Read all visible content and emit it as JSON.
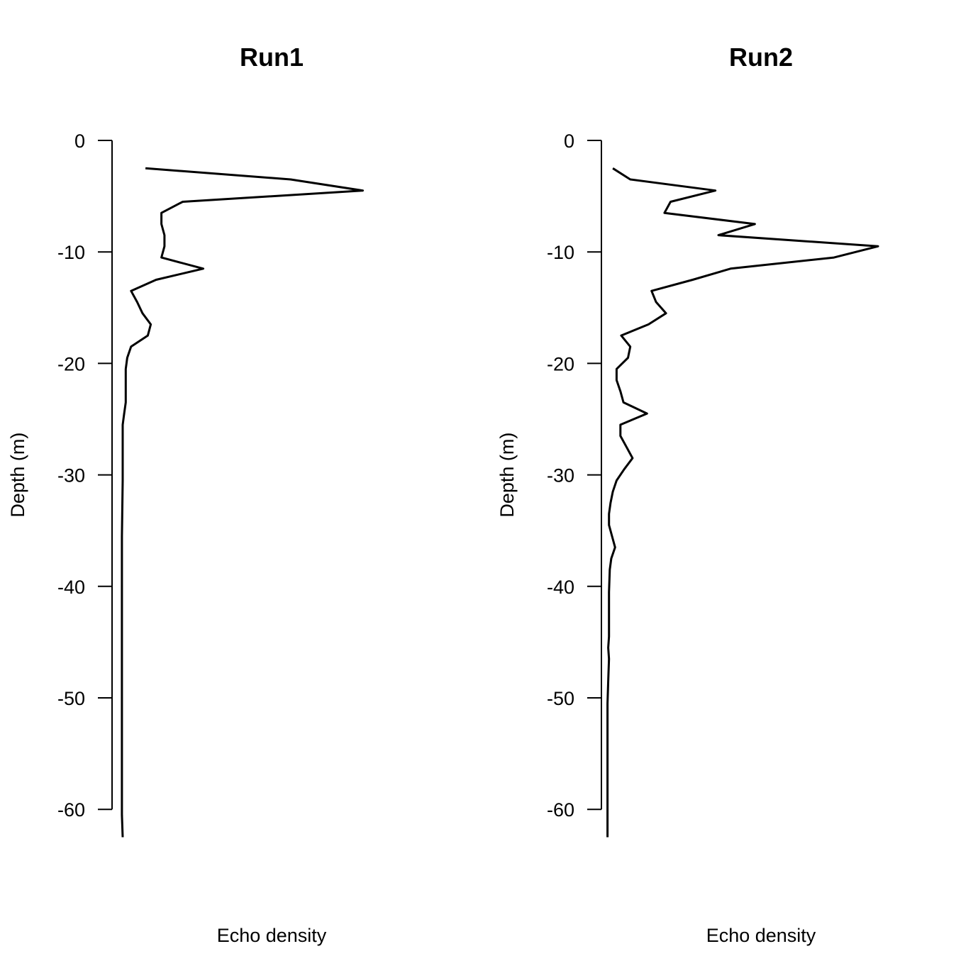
{
  "chart_data": [
    {
      "type": "line",
      "title": "Run1",
      "xlabel": "Echo density",
      "ylabel": "Depth (m)",
      "yticks": [
        0,
        -10,
        -20,
        -30,
        -40,
        -50,
        -60
      ],
      "ylim": [
        -62.5,
        -2.5
      ],
      "x_axis_drawn": false,
      "grid": false,
      "series": [
        {
          "points": [
            [
              0.044,
              -2.5
            ],
            [
              0.235,
              -3.5
            ],
            [
              0.33,
              -4.5
            ],
            [
              0.093,
              -5.5
            ],
            [
              0.065,
              -6.5
            ],
            [
              0.065,
              -7.5
            ],
            [
              0.069,
              -8.5
            ],
            [
              0.069,
              -9.5
            ],
            [
              0.065,
              -10.5
            ],
            [
              0.12,
              -11.5
            ],
            [
              0.058,
              -12.5
            ],
            [
              0.025,
              -13.5
            ],
            [
              0.033,
              -14.5
            ],
            [
              0.04,
              -15.5
            ],
            [
              0.051,
              -16.5
            ],
            [
              0.047,
              -17.5
            ],
            [
              0.025,
              -18.5
            ],
            [
              0.02,
              -19.5
            ],
            [
              0.018,
              -20.5
            ],
            [
              0.018,
              -21.5
            ],
            [
              0.018,
              -22.5
            ],
            [
              0.018,
              -23.5
            ],
            [
              0.016,
              -24.5
            ],
            [
              0.014,
              -25.5
            ],
            [
              0.014,
              -27.5
            ],
            [
              0.014,
              -30.5
            ],
            [
              0.013,
              -35.5
            ],
            [
              0.013,
              -40.5
            ],
            [
              0.013,
              -45.5
            ],
            [
              0.013,
              -50.5
            ],
            [
              0.013,
              -55.5
            ],
            [
              0.013,
              -60.5
            ],
            [
              0.014,
              -62.5
            ]
          ]
        }
      ]
    },
    {
      "type": "line",
      "title": "Run2",
      "xlabel": "Echo density",
      "ylabel": "Depth (m)",
      "yticks": [
        0,
        -10,
        -20,
        -30,
        -40,
        -50,
        -60
      ],
      "ylim": [
        -62.5,
        -2.5
      ],
      "x_axis_drawn": false,
      "grid": false,
      "series": [
        {
          "points": [
            [
              0.015,
              -2.5
            ],
            [
              0.038,
              -3.5
            ],
            [
              0.15,
              -4.5
            ],
            [
              0.091,
              -5.5
            ],
            [
              0.083,
              -6.5
            ],
            [
              0.202,
              -7.5
            ],
            [
              0.154,
              -8.5
            ],
            [
              0.364,
              -9.5
            ],
            [
              0.306,
              -10.5
            ],
            [
              0.17,
              -11.5
            ],
            [
              0.12,
              -12.5
            ],
            [
              0.066,
              -13.5
            ],
            [
              0.072,
              -14.5
            ],
            [
              0.085,
              -15.5
            ],
            [
              0.062,
              -16.5
            ],
            [
              0.026,
              -17.5
            ],
            [
              0.038,
              -18.5
            ],
            [
              0.035,
              -19.5
            ],
            [
              0.02,
              -20.5
            ],
            [
              0.02,
              -21.5
            ],
            [
              0.025,
              -22.5
            ],
            [
              0.029,
              -23.5
            ],
            [
              0.06,
              -24.5
            ],
            [
              0.025,
              -25.5
            ],
            [
              0.025,
              -26.5
            ],
            [
              0.033,
              -27.5
            ],
            [
              0.041,
              -28.5
            ],
            [
              0.03,
              -29.5
            ],
            [
              0.02,
              -30.5
            ],
            [
              0.015,
              -31.5
            ],
            [
              0.012,
              -32.5
            ],
            [
              0.01,
              -33.5
            ],
            [
              0.01,
              -34.5
            ],
            [
              0.014,
              -35.5
            ],
            [
              0.018,
              -36.5
            ],
            [
              0.013,
              -37.5
            ],
            [
              0.011,
              -38.5
            ],
            [
              0.01,
              -40.5
            ],
            [
              0.01,
              -42.5
            ],
            [
              0.01,
              -44.5
            ],
            [
              0.009,
              -45.5
            ],
            [
              0.01,
              -46.5
            ],
            [
              0.009,
              -48.5
            ],
            [
              0.008,
              -50.5
            ],
            [
              0.008,
              -55.5
            ],
            [
              0.008,
              -60.5
            ],
            [
              0.008,
              -62.5
            ]
          ]
        }
      ]
    }
  ]
}
